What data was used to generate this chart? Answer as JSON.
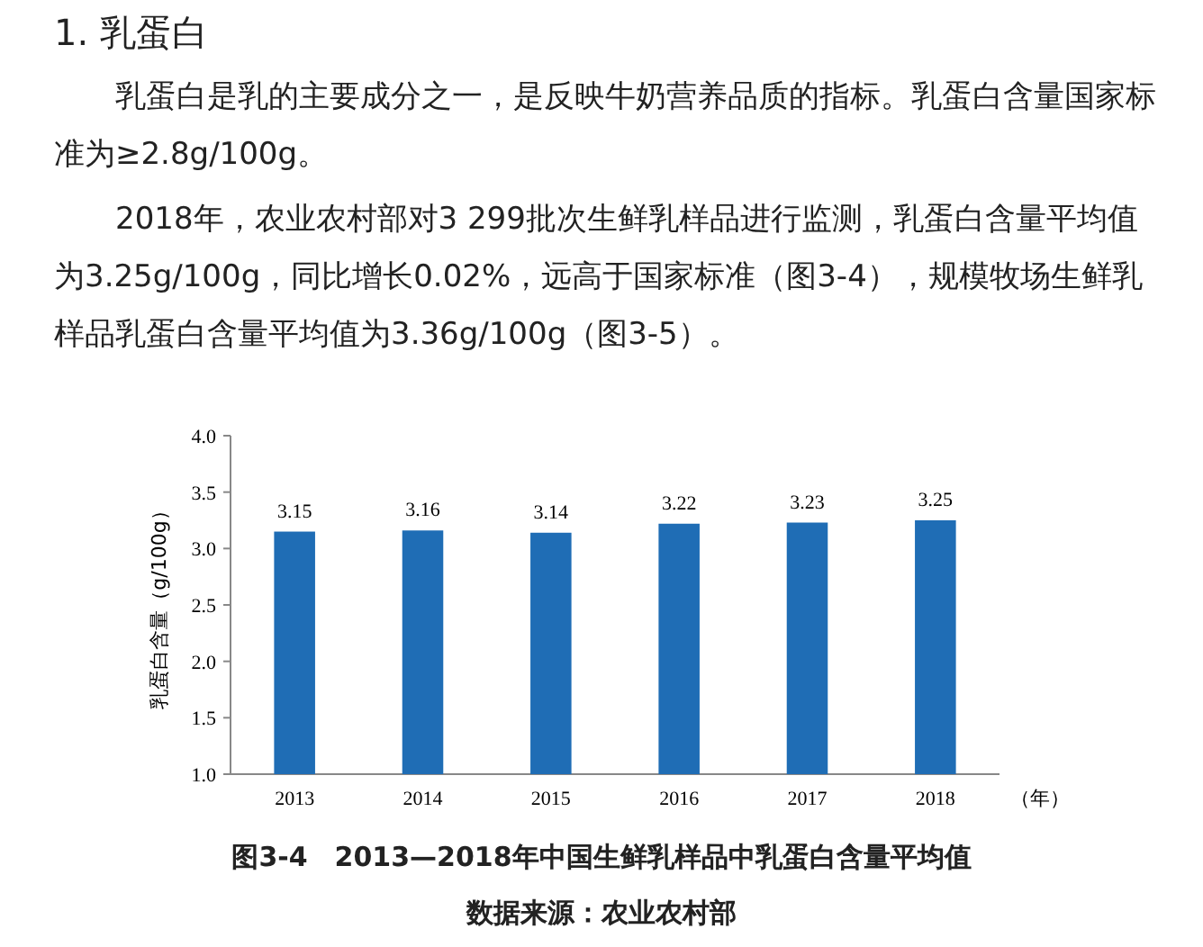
{
  "chart_data": {
    "type": "bar",
    "title": "图3-4　2013—2018年中国生鲜乳样品中乳蛋白含量平均值",
    "annotations": [
      "1. 乳蛋白",
      "乳蛋白是乳的主要成分之一，是反映牛奶营养品质的指标。乳蛋白含量国家标准为≥2.8g/100g。",
      "2018年，农业农村部对3 299批次生鲜乳样品进行监测，乳蛋白含量平均值为3.25g/100g，同比增长0.02%，远高于国家标准（图3-4），规模牧场生鲜乳样品乳蛋白含量平均值为3.36g/100g（图3-5）。",
      "数据来源：农业农村部"
    ],
    "xlabel": "（年）",
    "ylabel": "乳蛋白含量（g/100g）",
    "categories": [
      "2013",
      "2014",
      "2015",
      "2016",
      "2017",
      "2018"
    ],
    "values": [
      3.15,
      3.16,
      3.14,
      3.22,
      3.23,
      3.25
    ],
    "color": "#1f6db5",
    "data_labels": true,
    "ylim": [
      1,
      4
    ],
    "yticks": [
      {
        "value": 1,
        "label": "1.0"
      },
      {
        "value": 1.5,
        "label": "1.5"
      },
      {
        "value": 2,
        "label": "2.0"
      },
      {
        "value": 2.5,
        "label": "2.5"
      },
      {
        "value": 3,
        "label": "3.0"
      },
      {
        "value": 3.5,
        "label": "3.5"
      },
      {
        "value": 4,
        "label": "4.0"
      }
    ]
  }
}
